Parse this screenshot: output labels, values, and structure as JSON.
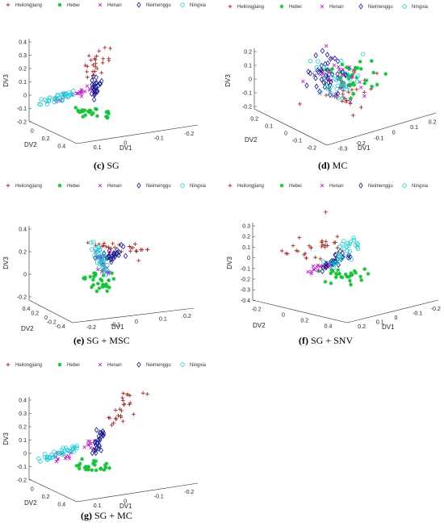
{
  "legend_entries": [
    "Heilongjiang",
    "Hebei",
    "Henan",
    "Neimenggu",
    "Ningxia"
  ],
  "series_colors": {
    "Heilongjiang": "#a0302a",
    "Hebei": "#16c23a",
    "Henan": "#c020c8",
    "Neimenggu": "#1a1a8c",
    "Ningxia": "#1fc9d0"
  },
  "series_markers": {
    "Heilongjiang": "plus",
    "Hebei": "star",
    "Henan": "cross",
    "Neimenggu": "diamond",
    "Ningxia": "circle"
  },
  "chart_data": [
    {
      "id": "c",
      "type": "scatter",
      "title_letter": "(c)",
      "title_rest": " SG",
      "xlabel": "DV1",
      "ylabel": "DV2",
      "zlabel": "DV3",
      "z_ticks": [
        "0.4",
        "0.3",
        "0.2",
        "0.1",
        "0",
        "-0.1",
        "-0.2"
      ],
      "dv2_ticks": [
        "0",
        "0.2",
        "0.4"
      ],
      "dv1_ticks": [
        "0.1",
        "0",
        "-0.1",
        "-0.2"
      ]
    },
    {
      "id": "d",
      "type": "scatter",
      "title_letter": "(d)",
      "title_rest": " MC",
      "xlabel": "DV1",
      "ylabel": "DV2",
      "zlabel": "DV3",
      "z_ticks": [
        "0.2",
        "0.1",
        "0",
        "-0.1",
        "-0.2"
      ],
      "dv2_ticks": [
        "0.2",
        "0.1",
        "0",
        "-0.1",
        "-0.2"
      ],
      "dv1_ticks": [
        "-0.3",
        "-0.2",
        "-0.1",
        "0",
        "0.1",
        "0.2"
      ]
    },
    {
      "id": "e",
      "type": "scatter",
      "title_letter": "(e)",
      "title_rest": " SG + MSC",
      "xlabel": "DV1",
      "ylabel": "DV2",
      "zlabel": "DV3",
      "z_ticks": [
        "0.4",
        "0.2",
        "0",
        "-0.2"
      ],
      "dv2_ticks": [
        "0.4",
        "0.2",
        "0",
        "-0.2",
        "-0.4"
      ],
      "dv1_ticks": [
        "-0.2",
        "-0.1",
        "0",
        "0.1",
        "0.2"
      ]
    },
    {
      "id": "f",
      "type": "scatter",
      "title_letter": "(f)",
      "title_rest": " SG + SNV",
      "xlabel": "DV1",
      "ylabel": "DV2",
      "zlabel": "DV3",
      "z_ticks": [
        "0.3",
        "0.2",
        "0.1",
        "0",
        "-0.1",
        "-0.2",
        "-0.3",
        "-0.4"
      ],
      "dv2_ticks": [
        "-0.2",
        "0",
        "0.2",
        "0.4"
      ],
      "dv1_ticks": [
        "0.2",
        "0.1",
        "0",
        "-0.1",
        "-0.2"
      ]
    },
    {
      "id": "g",
      "type": "scatter",
      "title_letter": "(g)",
      "title_rest": " SG + MC",
      "xlabel": "DV1",
      "ylabel": "DV2",
      "zlabel": "DV3",
      "z_ticks": [
        "0.4",
        "0.3",
        "0.2",
        "0.1",
        "0",
        "-0.1",
        "-0.2"
      ],
      "dv2_ticks": [
        "0",
        "0.2",
        "0.4"
      ],
      "dv1_ticks": [
        "0.1",
        "0",
        "-0.1",
        "-0.2"
      ]
    }
  ]
}
